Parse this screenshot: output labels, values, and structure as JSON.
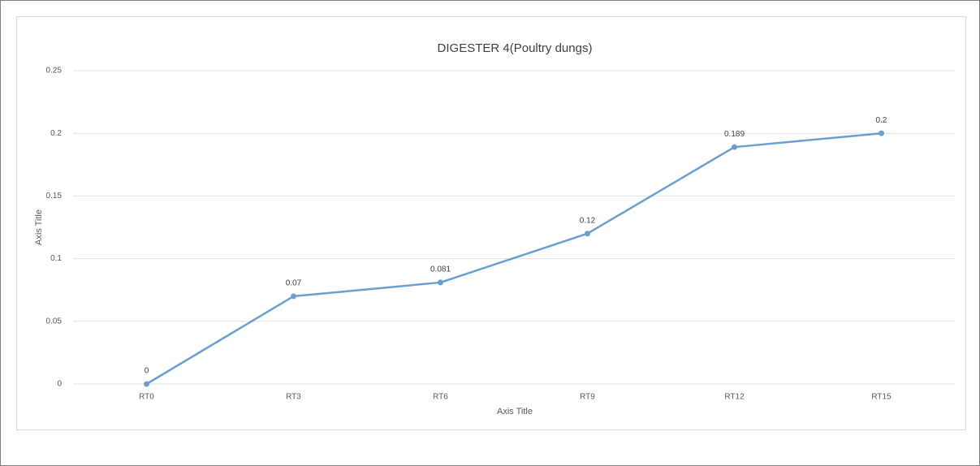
{
  "chart_data": {
    "type": "line",
    "title": "DIGESTER 4(Poultry dungs)",
    "x_label": "Axis Title",
    "y_label": "Axis Title",
    "categories": [
      "RT0",
      "RT3",
      "RT6",
      "RT9",
      "RT12",
      "RT15"
    ],
    "values": [
      0,
      0.07,
      0.081,
      0.12,
      0.189,
      0.2
    ],
    "color": "#6a9fcf",
    "ylim": [
      0,
      0.25
    ],
    "yticks": [
      0,
      0.05,
      0.1,
      0.15,
      0.2,
      0.25
    ],
    "grid": true
  }
}
